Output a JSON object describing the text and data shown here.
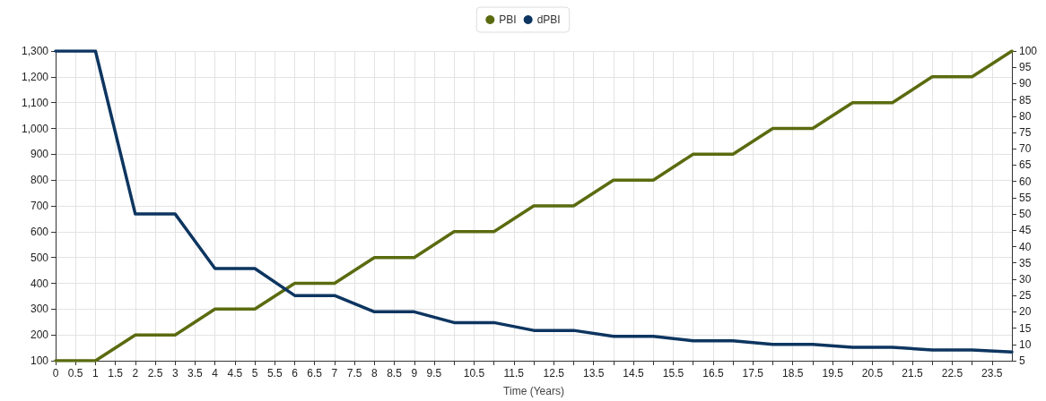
{
  "chart_data": {
    "type": "line",
    "xlabel": "Time (Years)",
    "x": [
      0,
      1,
      2,
      3,
      4,
      5,
      6,
      7,
      8,
      9,
      10,
      11,
      12,
      13,
      14,
      15,
      16,
      17,
      18,
      19,
      20,
      21,
      22,
      23,
      24
    ],
    "series": [
      {
        "name": "PBI",
        "color": "#5a6b0f",
        "values": [
          100,
          100,
          200,
          200,
          300,
          300,
          400,
          400,
          500,
          500,
          600,
          600,
          700,
          700,
          800,
          800,
          900,
          900,
          1000,
          1000,
          1100,
          1100,
          1200,
          1200,
          1300
        ]
      },
      {
        "name": "dPBI",
        "color": "#0d3560",
        "axis": "y2",
        "values": [
          100,
          100,
          50,
          50,
          33.3,
          33.3,
          25,
          25,
          20,
          20,
          16.7,
          16.7,
          14.3,
          14.3,
          12.5,
          12.5,
          11.1,
          11.1,
          10,
          10,
          9.1,
          9.1,
          8.3,
          8.3,
          7.7
        ]
      }
    ],
    "xlim": [
      0,
      24
    ],
    "xticks": [
      0,
      0.5,
      1,
      1.5,
      2,
      2.5,
      3,
      3.5,
      4,
      4.5,
      5,
      5.5,
      6,
      6.5,
      7,
      7.5,
      8,
      8.5,
      9,
      9.5,
      {
        "value": 10,
        "label": null
      },
      10.5,
      {
        "value": 11,
        "label": null
      },
      11.5,
      {
        "value": 12,
        "label": null
      },
      12.5,
      {
        "value": 13,
        "label": null
      },
      13.5,
      {
        "value": 14,
        "label": null
      },
      14.5,
      {
        "value": 15,
        "label": null
      },
      15.5,
      {
        "value": 16,
        "label": null
      },
      16.5,
      {
        "value": 17,
        "label": null
      },
      17.5,
      {
        "value": 18,
        "label": null
      },
      18.5,
      {
        "value": 19,
        "label": null
      },
      19.5,
      {
        "value": 20,
        "label": null
      },
      20.5,
      {
        "value": 21,
        "label": null
      },
      21.5,
      {
        "value": 22,
        "label": null
      },
      22.5,
      {
        "value": 23,
        "label": null
      },
      23.5
    ],
    "ylim": [
      100,
      1300
    ],
    "yticks": [
      100,
      200,
      300,
      400,
      500,
      600,
      700,
      800,
      900,
      {
        "value": 1000,
        "label": "1,000"
      },
      {
        "value": 1100,
        "label": "1,100"
      },
      {
        "value": 1200,
        "label": "1,200"
      },
      {
        "value": 1300,
        "label": "1,300"
      }
    ],
    "y2lim": [
      5,
      100
    ],
    "y2ticks": [
      5,
      10,
      15,
      20,
      25,
      30,
      35,
      40,
      45,
      50,
      55,
      60,
      65,
      70,
      75,
      80,
      85,
      90,
      95,
      100
    ],
    "grid": true,
    "legend": "top",
    "marker": "none",
    "line_style": "solid"
  }
}
